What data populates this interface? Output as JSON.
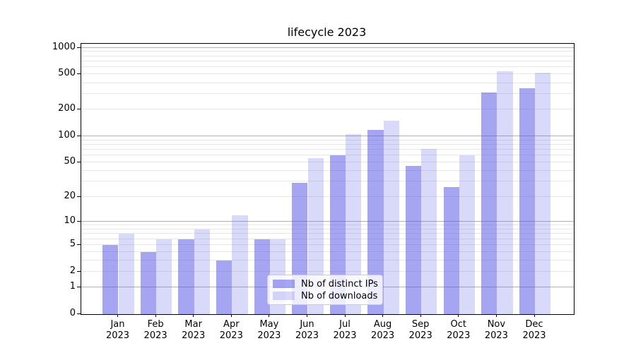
{
  "title": "lifecycle 2023",
  "colors": {
    "bar_distinct_ips": "rgba(82,82,228,0.52)",
    "bar_downloads": "rgba(82,82,228,0.22)",
    "grid_major": "#b2b2b2",
    "grid_minor": "#e7e7e7",
    "axis_spine": "#000000",
    "legend_border": "#cccccc"
  },
  "legend": {
    "items": [
      "Nb of distinct IPs",
      "Nb of downloads"
    ]
  },
  "chart_data": {
    "type": "bar",
    "title": "lifecycle 2023",
    "categories": [
      "Jan 2023",
      "Feb 2023",
      "Mar 2023",
      "Apr 2023",
      "May 2023",
      "Jun 2023",
      "Jul 2023",
      "Aug 2023",
      "Sep 2023",
      "Oct 2023",
      "Nov 2023",
      "Dec 2023"
    ],
    "series": [
      {
        "name": "Nb of distinct IPs",
        "fill": "rgba(82,82,228,0.52)",
        "values": [
          5,
          4,
          6,
          3,
          6,
          29,
          60,
          117,
          46,
          26,
          315,
          350
        ]
      },
      {
        "name": "Nb of downloads",
        "fill": "rgba(82,82,228,0.22)",
        "values": [
          7,
          6,
          8,
          12,
          6,
          56,
          105,
          150,
          72,
          60,
          545,
          520
        ]
      }
    ],
    "xlabel": "",
    "ylabel": "",
    "yscale": "log1p",
    "ytick_values": [
      0,
      1,
      2,
      5,
      10,
      20,
      50,
      100,
      200,
      500,
      1000
    ],
    "ytick_labels": [
      "0",
      "1",
      "2",
      "5",
      "10",
      "20",
      "50",
      "100",
      "200",
      "500",
      "1000"
    ],
    "ylim": [
      0,
      1110
    ],
    "grid": "both",
    "legend_position": "lower center"
  }
}
